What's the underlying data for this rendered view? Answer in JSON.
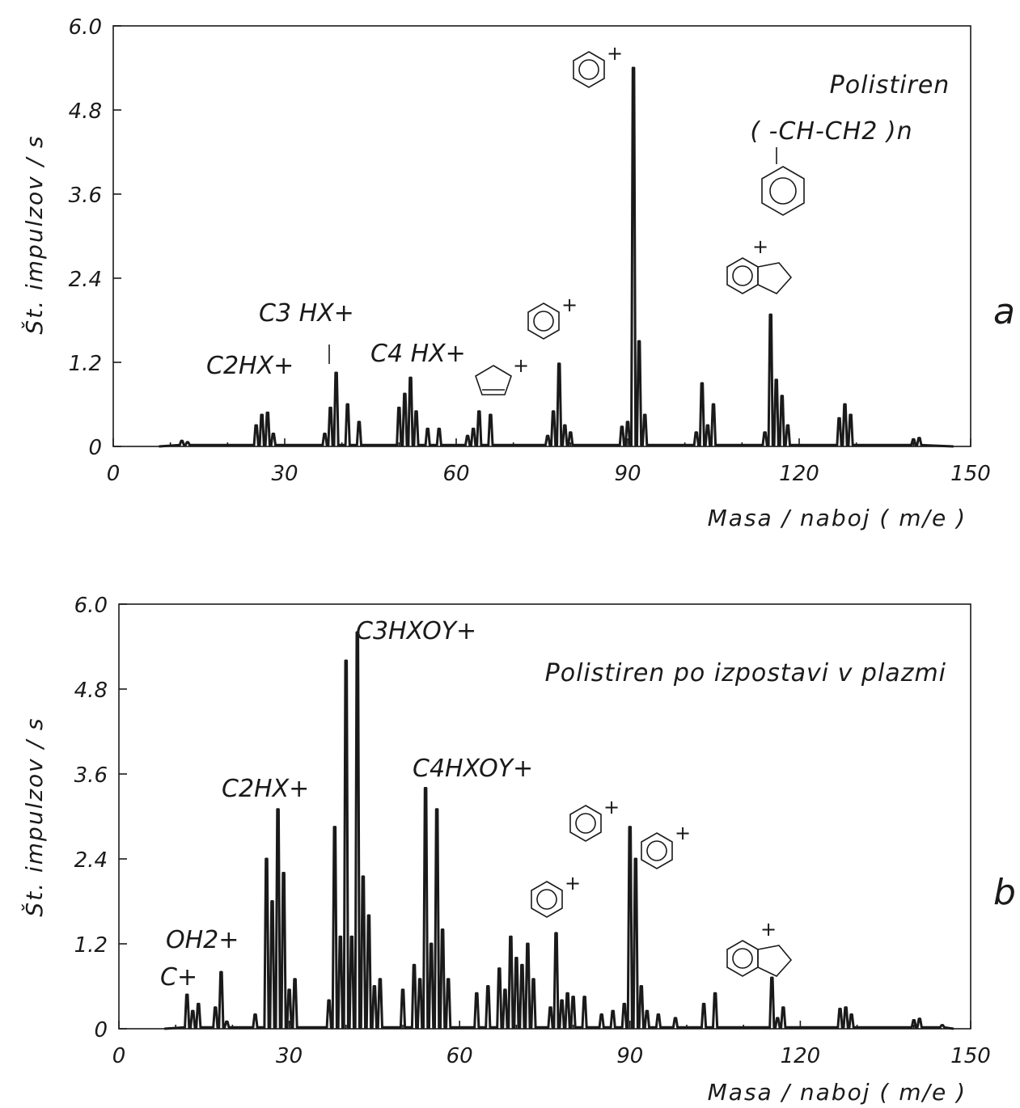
{
  "chart_data": [
    {
      "type": "line",
      "panel_label": "a",
      "title": "Polistiren",
      "formula": "( -CH-CH2 )n",
      "xlabel": "Masa / naboj ( m/e )",
      "ylabel": "Št. impulzov / s",
      "xlim": [
        0,
        150
      ],
      "ylim": [
        0,
        6.0
      ],
      "x_ticks": [
        "0",
        "30",
        "60",
        "90",
        "120",
        "150"
      ],
      "y_ticks": [
        "0",
        "1.2",
        "2.4",
        "3.6",
        "4.8",
        "6.0"
      ],
      "grid": false,
      "peaks": [
        {
          "x": 12,
          "y": 0.08
        },
        {
          "x": 13,
          "y": 0.06
        },
        {
          "x": 25,
          "y": 0.3
        },
        {
          "x": 26,
          "y": 0.45
        },
        {
          "x": 27,
          "y": 0.48
        },
        {
          "x": 28,
          "y": 0.18
        },
        {
          "x": 37,
          "y": 0.18
        },
        {
          "x": 38,
          "y": 0.55
        },
        {
          "x": 39,
          "y": 1.05
        },
        {
          "x": 41,
          "y": 0.6
        },
        {
          "x": 43,
          "y": 0.35
        },
        {
          "x": 50,
          "y": 0.55
        },
        {
          "x": 51,
          "y": 0.75
        },
        {
          "x": 52,
          "y": 0.98
        },
        {
          "x": 53,
          "y": 0.5
        },
        {
          "x": 55,
          "y": 0.25
        },
        {
          "x": 57,
          "y": 0.25
        },
        {
          "x": 62,
          "y": 0.15
        },
        {
          "x": 63,
          "y": 0.25
        },
        {
          "x": 64,
          "y": 0.5
        },
        {
          "x": 66,
          "y": 0.45
        },
        {
          "x": 76,
          "y": 0.15
        },
        {
          "x": 77,
          "y": 0.5
        },
        {
          "x": 78,
          "y": 1.18
        },
        {
          "x": 79,
          "y": 0.3
        },
        {
          "x": 80,
          "y": 0.2
        },
        {
          "x": 89,
          "y": 0.28
        },
        {
          "x": 90,
          "y": 0.35
        },
        {
          "x": 91,
          "y": 5.4
        },
        {
          "x": 92,
          "y": 1.5
        },
        {
          "x": 93,
          "y": 0.45
        },
        {
          "x": 102,
          "y": 0.2
        },
        {
          "x": 103,
          "y": 0.9
        },
        {
          "x": 104,
          "y": 0.3
        },
        {
          "x": 105,
          "y": 0.6
        },
        {
          "x": 114,
          "y": 0.2
        },
        {
          "x": 115,
          "y": 1.88
        },
        {
          "x": 116,
          "y": 0.95
        },
        {
          "x": 117,
          "y": 0.72
        },
        {
          "x": 118,
          "y": 0.3
        },
        {
          "x": 127,
          "y": 0.4
        },
        {
          "x": 128,
          "y": 0.6
        },
        {
          "x": 129,
          "y": 0.45
        },
        {
          "x": 140,
          "y": 0.1
        },
        {
          "x": 141,
          "y": 0.12
        }
      ],
      "annotations": [
        {
          "text": "C2HX+",
          "x": 27
        },
        {
          "text": "C3 HX+",
          "x": 39
        },
        {
          "text": "C4 HX+",
          "x": 52
        },
        {
          "text": "C5H5+ (ring)",
          "x": 65
        },
        {
          "text": "C6H6+ (benzene ring)",
          "x": 78
        },
        {
          "text": "C7H7+ (benzene ring)",
          "x": 91
        },
        {
          "text": "C9H7+ (indene ring)",
          "x": 115
        }
      ]
    },
    {
      "type": "line",
      "panel_label": "b",
      "title": "Polistiren po izpostavi v plazmi",
      "xlabel": "Masa / naboj ( m/e )",
      "ylabel": "Št. impulzov / s",
      "xlim": [
        0,
        150
      ],
      "ylim": [
        0,
        6.0
      ],
      "x_ticks": [
        "0",
        "30",
        "60",
        "90",
        "120",
        "150"
      ],
      "y_ticks": [
        "0",
        "1.2",
        "2.4",
        "3.6",
        "4.8",
        "6.0"
      ],
      "grid": false,
      "peaks": [
        {
          "x": 12,
          "y": 0.48
        },
        {
          "x": 13,
          "y": 0.25
        },
        {
          "x": 14,
          "y": 0.35
        },
        {
          "x": 17,
          "y": 0.3
        },
        {
          "x": 18,
          "y": 0.8
        },
        {
          "x": 19,
          "y": 0.1
        },
        {
          "x": 24,
          "y": 0.2
        },
        {
          "x": 26,
          "y": 2.4
        },
        {
          "x": 27,
          "y": 1.8
        },
        {
          "x": 28,
          "y": 3.1
        },
        {
          "x": 29,
          "y": 2.2
        },
        {
          "x": 30,
          "y": 0.55
        },
        {
          "x": 31,
          "y": 0.7
        },
        {
          "x": 37,
          "y": 0.4
        },
        {
          "x": 38,
          "y": 2.85
        },
        {
          "x": 39,
          "y": 1.3
        },
        {
          "x": 40,
          "y": 5.2
        },
        {
          "x": 41,
          "y": 1.3
        },
        {
          "x": 42,
          "y": 5.6
        },
        {
          "x": 43,
          "y": 2.15
        },
        {
          "x": 44,
          "y": 1.6
        },
        {
          "x": 45,
          "y": 0.6
        },
        {
          "x": 46,
          "y": 0.7
        },
        {
          "x": 50,
          "y": 0.55
        },
        {
          "x": 52,
          "y": 0.9
        },
        {
          "x": 53,
          "y": 0.7
        },
        {
          "x": 54,
          "y": 3.4
        },
        {
          "x": 55,
          "y": 1.2
        },
        {
          "x": 56,
          "y": 3.1
        },
        {
          "x": 57,
          "y": 1.4
        },
        {
          "x": 58,
          "y": 0.7
        },
        {
          "x": 63,
          "y": 0.5
        },
        {
          "x": 65,
          "y": 0.6
        },
        {
          "x": 67,
          "y": 0.85
        },
        {
          "x": 68,
          "y": 0.55
        },
        {
          "x": 69,
          "y": 1.3
        },
        {
          "x": 70,
          "y": 1.0
        },
        {
          "x": 71,
          "y": 0.9
        },
        {
          "x": 72,
          "y": 1.2
        },
        {
          "x": 73,
          "y": 0.7
        },
        {
          "x": 76,
          "y": 0.3
        },
        {
          "x": 77,
          "y": 1.35
        },
        {
          "x": 78,
          "y": 0.4
        },
        {
          "x": 79,
          "y": 0.5
        },
        {
          "x": 80,
          "y": 0.45
        },
        {
          "x": 82,
          "y": 0.45
        },
        {
          "x": 85,
          "y": 0.2
        },
        {
          "x": 87,
          "y": 0.25
        },
        {
          "x": 89,
          "y": 0.35
        },
        {
          "x": 90,
          "y": 2.85
        },
        {
          "x": 91,
          "y": 2.4
        },
        {
          "x": 92,
          "y": 0.6
        },
        {
          "x": 93,
          "y": 0.25
        },
        {
          "x": 95,
          "y": 0.2
        },
        {
          "x": 98,
          "y": 0.15
        },
        {
          "x": 103,
          "y": 0.35
        },
        {
          "x": 105,
          "y": 0.5
        },
        {
          "x": 115,
          "y": 0.72
        },
        {
          "x": 116,
          "y": 0.15
        },
        {
          "x": 117,
          "y": 0.3
        },
        {
          "x": 127,
          "y": 0.28
        },
        {
          "x": 128,
          "y": 0.3
        },
        {
          "x": 129,
          "y": 0.2
        },
        {
          "x": 140,
          "y": 0.12
        },
        {
          "x": 141,
          "y": 0.14
        },
        {
          "x": 145,
          "y": 0.05
        }
      ],
      "annotations": [
        {
          "text": "C+",
          "x": 12
        },
        {
          "text": "OH2+",
          "x": 18
        },
        {
          "text": "C2HX+",
          "x": 28
        },
        {
          "text": "C3HXOY+",
          "x": 42
        },
        {
          "text": "C4HXOY+",
          "x": 55
        },
        {
          "text": "C6H6+ (benzene ring)",
          "x": 77
        },
        {
          "text": "C7H7+ (benzene ring)",
          "x": 90
        },
        {
          "text": "C7H7+ (benzene ring)",
          "x": 91
        },
        {
          "text": "C9H7+ (indene ring)",
          "x": 115
        }
      ]
    }
  ]
}
